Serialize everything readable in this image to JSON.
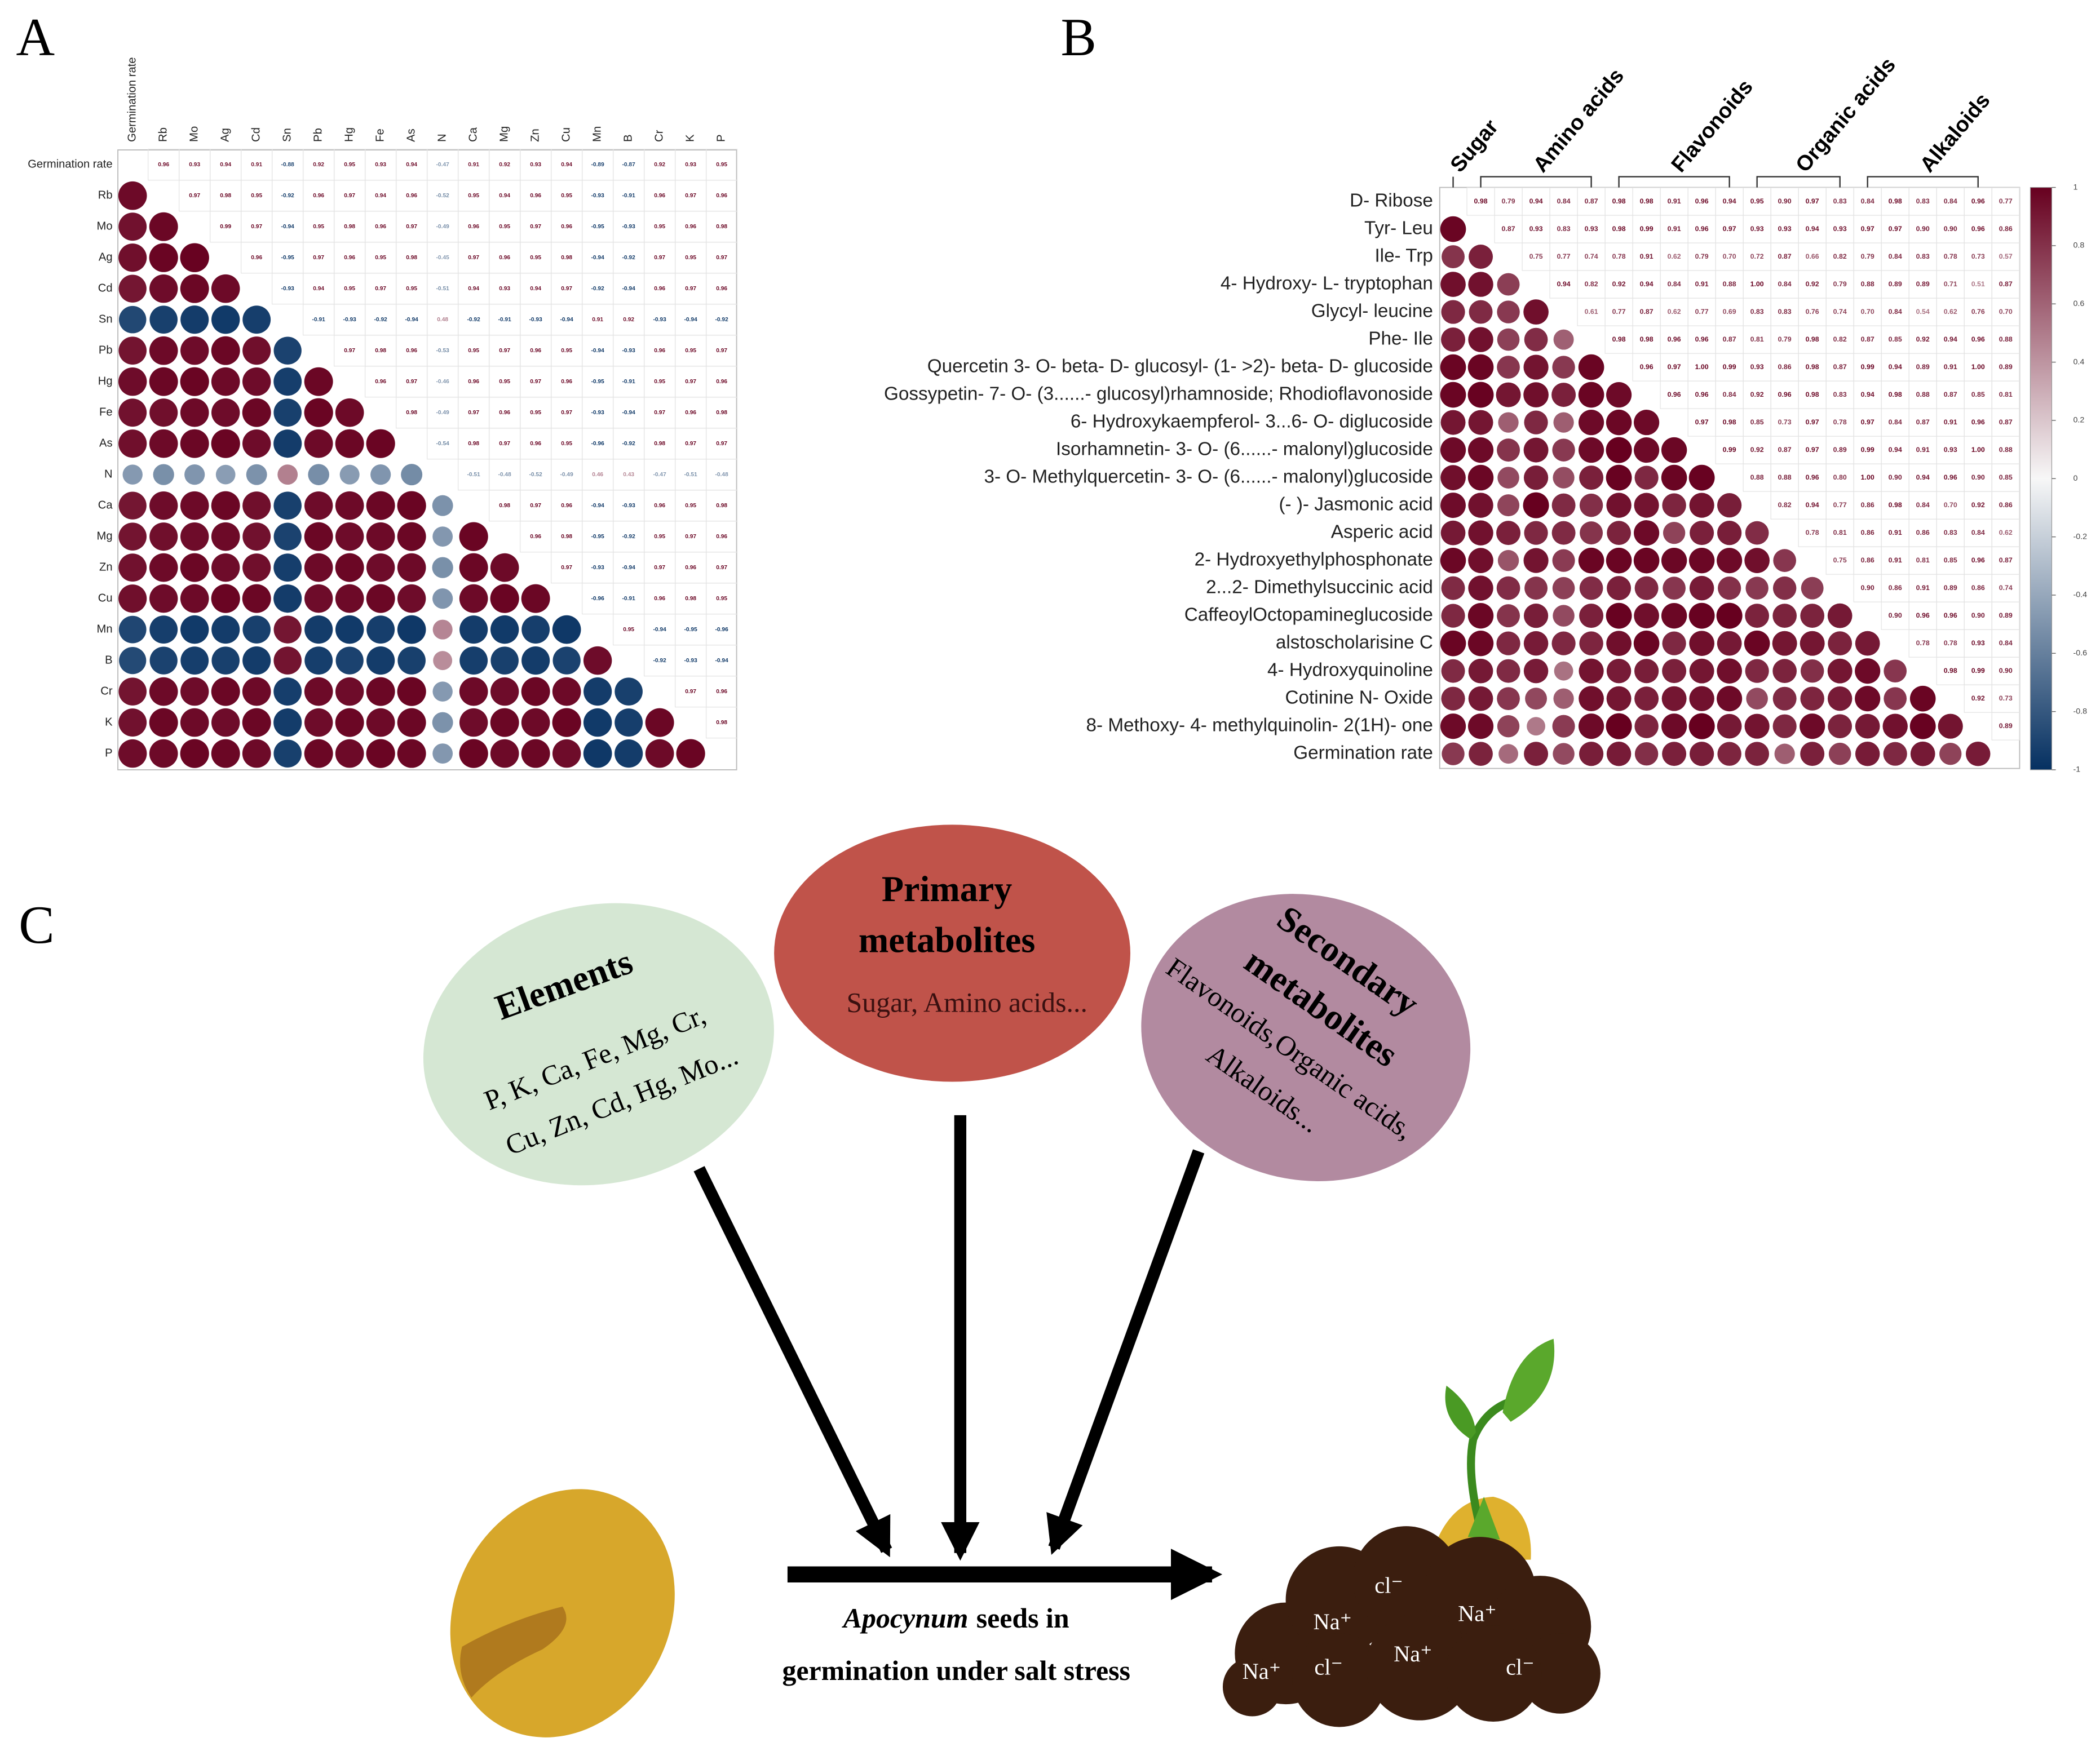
{
  "panel_labels": [
    "A",
    "B",
    "C"
  ],
  "chart_data": [
    {
      "type": "correlogram",
      "variables": [
        "Germination rate",
        "Rb",
        "Mo",
        "Ag",
        "Cd",
        "Sn",
        "Pb",
        "Hg",
        "Fe",
        "As",
        "N",
        "Ca",
        "Mg",
        "Zn",
        "Cu",
        "Mn",
        "B",
        "Cr",
        "K",
        "P"
      ],
      "values": [
        [
          0.96,
          0.93,
          0.94,
          0.91,
          -0.88,
          0.92,
          0.95,
          0.93,
          0.94,
          -0.47,
          0.91,
          0.92,
          0.93,
          0.94,
          -0.89,
          -0.87,
          0.92,
          0.93,
          0.95
        ],
        [
          0.97,
          0.98,
          0.95,
          -0.92,
          0.96,
          0.97,
          0.94,
          0.96,
          -0.52,
          0.95,
          0.94,
          0.96,
          0.95,
          -0.93,
          -0.91,
          0.96,
          0.97,
          0.96
        ],
        [
          0.99,
          0.97,
          -0.94,
          0.95,
          0.98,
          0.96,
          0.97,
          -0.49,
          0.96,
          0.95,
          0.97,
          0.96,
          -0.95,
          -0.93,
          0.95,
          0.96,
          0.98
        ],
        [
          0.96,
          -0.95,
          0.97,
          0.96,
          0.95,
          0.98,
          -0.45,
          0.97,
          0.96,
          0.95,
          0.98,
          -0.94,
          -0.92,
          0.97,
          0.95,
          0.97
        ],
        [
          -0.93,
          0.94,
          0.95,
          0.97,
          0.95,
          -0.51,
          0.94,
          0.93,
          0.94,
          0.97,
          -0.92,
          -0.94,
          0.96,
          0.97,
          0.96
        ],
        [
          -0.91,
          -0.93,
          -0.92,
          -0.94,
          0.48,
          -0.92,
          -0.91,
          -0.93,
          -0.94,
          0.91,
          0.92,
          -0.93,
          -0.94,
          -0.92
        ],
        [
          0.97,
          0.98,
          0.96,
          -0.53,
          0.95,
          0.97,
          0.96,
          0.95,
          -0.94,
          -0.93,
          0.96,
          0.95,
          0.97
        ],
        [
          0.96,
          0.97,
          -0.46,
          0.96,
          0.95,
          0.97,
          0.96,
          -0.95,
          -0.91,
          0.95,
          0.97,
          0.96
        ],
        [
          0.98,
          -0.49,
          0.97,
          0.96,
          0.95,
          0.97,
          -0.93,
          -0.94,
          0.97,
          0.96,
          0.98
        ],
        [
          -0.54,
          0.98,
          0.97,
          0.96,
          0.95,
          -0.96,
          -0.92,
          0.98,
          0.97,
          0.97
        ],
        [
          -0.51,
          -0.48,
          -0.52,
          -0.49,
          0.46,
          0.43,
          -0.47,
          -0.51,
          -0.48
        ],
        [
          0.98,
          0.97,
          0.96,
          -0.94,
          -0.93,
          0.96,
          0.95,
          0.98
        ],
        [
          0.96,
          0.98,
          -0.95,
          -0.92,
          0.95,
          0.97,
          0.96
        ],
        [
          0.97,
          -0.93,
          -0.94,
          0.97,
          0.96,
          0.97
        ],
        [
          -0.96,
          -0.91,
          0.96,
          0.98,
          0.95
        ],
        [
          0.95,
          -0.94,
          -0.95,
          -0.96
        ],
        [
          -0.92,
          -0.93,
          -0.94
        ],
        [
          0.97,
          0.96
        ],
        [
          0.98
        ]
      ],
      "colorlim": [
        -1,
        1
      ],
      "colorscale": [
        "#053061",
        "#f7f7f7",
        "#67001f"
      ],
      "grid": true
    },
    {
      "type": "correlogram",
      "variables": [
        "D- Ribose",
        "Tyr- Leu",
        "Ile- Trp",
        "4- Hydroxy- L- tryptophan",
        "Glycyl- leucine",
        "Phe- Ile",
        "Quercetin 3- O- beta- D- glucosyl- (1- >2)- beta- D- glucoside",
        "Gossypetin- 7- O- (3......- glucosyl)rhamnoside; Rhodioflavonoside",
        "6- Hydroxykaempferol- 3...6- O- diglucoside",
        "Isorhamnetin- 3- O- (6......- malonyl)glucoside",
        "3- O- Methylquercetin- 3- O- (6......- malonyl)glucoside",
        "(- )- Jasmonic acid",
        "Asperic acid",
        "2- Hydroxyethylphosphonate",
        "2...2- Dimethylsuccinic acid",
        "CaffeoylOctopamineglucoside",
        "alstoscholarisine C",
        "4- Hydroxyquinoline",
        "Cotinine N- Oxide",
        "8- Methoxy- 4- methylquinolin- 2(1H)- one",
        "Germination rate"
      ],
      "values": [
        [
          0.98,
          0.79,
          0.94,
          0.84,
          0.87,
          0.98,
          0.98,
          0.91,
          0.96,
          0.94,
          0.95,
          0.9,
          0.97,
          0.83,
          0.84,
          0.98,
          0.83,
          0.84,
          0.96,
          0.77
        ],
        [
          0.87,
          0.93,
          0.83,
          0.93,
          0.98,
          0.99,
          0.91,
          0.96,
          0.97,
          0.93,
          0.93,
          0.94,
          0.93,
          0.97,
          0.97,
          0.9,
          0.9,
          0.96,
          0.86
        ],
        [
          0.75,
          0.77,
          0.74,
          0.78,
          0.91,
          0.62,
          0.79,
          0.7,
          0.72,
          0.87,
          0.66,
          0.82,
          0.79,
          0.84,
          0.83,
          0.78,
          0.73,
          0.57
        ],
        [
          0.94,
          0.82,
          0.92,
          0.94,
          0.84,
          0.91,
          0.88,
          1.0,
          0.84,
          0.92,
          0.79,
          0.88,
          0.89,
          0.89,
          0.71,
          0.51,
          0.87
        ],
        [
          0.61,
          0.77,
          0.87,
          0.62,
          0.77,
          0.69,
          0.83,
          0.83,
          0.76,
          0.74,
          0.7,
          0.84,
          0.54,
          0.62,
          0.76,
          0.7
        ],
        [
          0.98,
          0.98,
          0.96,
          0.96,
          0.87,
          0.81,
          0.79,
          0.98,
          0.82,
          0.87,
          0.85,
          0.92,
          0.94,
          0.96,
          0.88
        ],
        [
          0.96,
          0.97,
          1.0,
          0.99,
          0.93,
          0.86,
          0.98,
          0.87,
          0.99,
          0.94,
          0.89,
          0.91,
          1.0,
          0.89
        ],
        [
          0.96,
          0.96,
          0.84,
          0.92,
          0.96,
          0.98,
          0.83,
          0.94,
          0.98,
          0.88,
          0.87,
          0.85,
          0.81
        ],
        [
          0.97,
          0.98,
          0.85,
          0.73,
          0.97,
          0.78,
          0.97,
          0.84,
          0.87,
          0.91,
          0.96,
          0.87
        ],
        [
          0.99,
          0.92,
          0.87,
          0.97,
          0.89,
          0.99,
          0.94,
          0.91,
          0.93,
          1.0,
          0.88
        ],
        [
          0.88,
          0.88,
          0.96,
          0.8,
          1.0,
          0.9,
          0.94,
          0.96,
          0.9,
          0.85
        ],
        [
          0.82,
          0.94,
          0.77,
          0.86,
          0.98,
          0.84,
          0.7,
          0.92,
          0.86
        ],
        [
          0.78,
          0.81,
          0.86,
          0.91,
          0.86,
          0.83,
          0.84,
          0.62
        ],
        [
          0.75,
          0.86,
          0.91,
          0.81,
          0.85,
          0.96,
          0.87
        ],
        [
          0.9,
          0.86,
          0.91,
          0.89,
          0.86,
          0.74
        ],
        [
          0.9,
          0.96,
          0.96,
          0.9,
          0.89
        ],
        [
          0.78,
          0.78,
          0.93,
          0.84
        ],
        [
          0.98,
          0.99,
          0.9
        ],
        [
          0.92,
          0.73
        ],
        [
          0.89
        ]
      ],
      "value_labels": [
        [
          "0.98",
          "0.79",
          "0.94",
          "0.84",
          "0.87",
          "0.98",
          "0.98",
          "0.91",
          "0.96",
          "0.94",
          "0.95",
          "0.90",
          "0.97",
          "0.83",
          "0.84",
          "0.98",
          "0.83",
          "0.84",
          "0.96",
          "0.77"
        ],
        [
          "0.87",
          "0.93",
          "0.83",
          "0.93",
          "0.98",
          "0.99",
          "0.91",
          "0.96",
          "0.97",
          "0.93",
          "0.93",
          "0.94",
          "0.93",
          "0.97",
          "0.97",
          "0.90",
          "0.90",
          "0.96",
          "0.86"
        ],
        [
          "0.75",
          "0.77",
          "0.74",
          "0.78",
          "0.91",
          "0.62",
          "0.79",
          "0.70",
          "0.72",
          "0.87",
          "0.66",
          "0.82",
          "0.79",
          "0.84",
          "0.83",
          "0.78",
          "0.73",
          "0.57"
        ],
        [
          "0.94",
          "0.82",
          "0.92",
          "0.94",
          "0.84",
          "0.91",
          "0.88",
          "1.00",
          "0.84",
          "0.92",
          "0.79",
          "0.88",
          "0.89",
          "0.89",
          "0.71",
          "0.51",
          "0.87"
        ],
        [
          "0.61",
          "0.77",
          "0.87",
          "0.62",
          "0.77",
          "0.69",
          "0.83",
          "0.83",
          "0.76",
          "0.74",
          "0.70",
          "0.84",
          "0.54",
          "0.62",
          "0.76",
          "0.70"
        ],
        [
          "0.98",
          "0.98",
          "0.96",
          "0.96",
          "0.87",
          "0.81",
          "0.79",
          "0.98",
          "0.82",
          "0.87",
          "0.85",
          "0.92",
          "0.94",
          "0.96",
          "0.88"
        ],
        [
          "0.96",
          "0.97",
          "1.00",
          "0.99",
          "0.93",
          "0.86",
          "0.98",
          "0.87",
          "0.99",
          "0.94",
          "0.89",
          "0.91",
          "1.00",
          "0.89"
        ],
        [
          "0.96",
          "0.96",
          "0.84",
          "0.92",
          "0.96",
          "0.98",
          "0.83",
          "0.94",
          "0.98",
          "0.88",
          "0.87",
          "0.85",
          "0.81"
        ],
        [
          "0.97",
          "0.98",
          "0.85",
          "0.73",
          "0.97",
          "0.78",
          "0.97",
          "0.84",
          "0.87",
          "0.91",
          "0.96",
          "0.87"
        ],
        [
          "0.99",
          "0.92",
          "0.87",
          "0.97",
          "0.89",
          "0.99",
          "0.94",
          "0.91",
          "0.93",
          "1.00",
          "0.88"
        ],
        [
          "0.88",
          "0.88",
          "0.96",
          "0.80",
          "1.00",
          "0.90",
          "0.94",
          "0.96",
          "0.90",
          "0.85"
        ],
        [
          "0.82",
          "0.94",
          "0.77",
          "0.86",
          "0.98",
          "0.84",
          "0.70",
          "0.92",
          "0.86"
        ],
        [
          "0.78",
          "0.81",
          "0.86",
          "0.91",
          "0.86",
          "0.83",
          "0.84",
          "0.62"
        ],
        [
          "0.75",
          "0.86",
          "0.91",
          "0.81",
          "0.85",
          "0.96",
          "0.87"
        ],
        [
          "0.90",
          "0.86",
          "0.91",
          "0.89",
          "0.86",
          "0.74"
        ],
        [
          "0.90",
          "0.96",
          "0.96",
          "0.90",
          "0.89"
        ],
        [
          "0.78",
          "0.78",
          "0.93",
          "0.84"
        ],
        [
          "0.98",
          "0.99",
          "0.90"
        ],
        [
          "0.92",
          "0.73"
        ],
        [
          "0.89"
        ]
      ],
      "groups": [
        "Sugar",
        "Amino acids",
        "Flavonoids",
        "Organic acids",
        "Alkaloids"
      ],
      "colorlim": [
        -1,
        1
      ],
      "colorbar_ticks": [
        1,
        0.8,
        0.6,
        0.4,
        0.2,
        0,
        -0.2,
        -0.4,
        -0.6,
        -0.8,
        -1
      ],
      "colorscale": [
        "#053061",
        "#f7f7f7",
        "#67001f"
      ],
      "grid": true
    }
  ],
  "diagram": {
    "elements": {
      "title": "Elements",
      "text": [
        "P, K, Ca, Fe, Mg, Cr,",
        "Cu, Zn, Cd, Hg, Mo..."
      ]
    },
    "primary": {
      "title": [
        "Primary",
        "metabolites"
      ],
      "text": [
        "Sugar, Amino acids..."
      ]
    },
    "secondary": {
      "title": [
        "Secondary",
        "metabolites"
      ],
      "text": [
        "Flavonoids,Organic acids,",
        "Alkaloids..."
      ]
    },
    "caption": {
      "species": "Apocynum",
      "text": "seeds in",
      "line2": "germination under salt stress"
    },
    "ions": [
      "cl⁻",
      "Na⁺",
      "Na⁺",
      "Na⁺",
      "Na⁺",
      "cl⁻",
      "cl⁻"
    ]
  }
}
